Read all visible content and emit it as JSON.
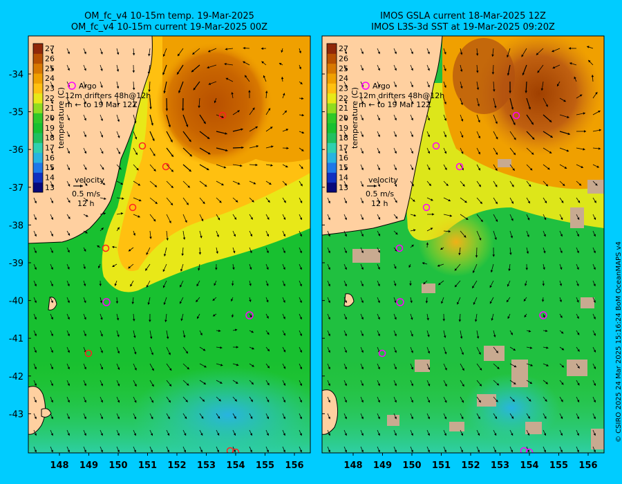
{
  "left_panel": {
    "title_line1": "OM_fc_v4  10-15m temp. 19-Mar-2025",
    "title_line2": "OM_fc_v4  10-15m current 19-Mar-2025 00Z"
  },
  "right_panel": {
    "title_line1": "IMOS GSLA current 18-Mar-2025 12Z",
    "title_line2": "IMOS L3S-3d SST at 19-Mar-2025 09:20Z"
  },
  "legend": {
    "argo_label": "Argo",
    "drifter_line1": "12m   drifters 48h@12h",
    "drifter_line2": "m  ← to 19 Mar 12Z",
    "velocity_label": "velocity",
    "velocity_scale": "0.5 m/s",
    "velocity_time": "12 h"
  },
  "colorbar": {
    "label": "temperature (C)",
    "ticks": [
      "13",
      "14",
      "15",
      "16",
      "17",
      "18",
      "19",
      "20",
      "21",
      "22",
      "23",
      "24",
      "25",
      "26",
      "27"
    ],
    "colors": [
      "#08087a",
      "#1030c0",
      "#1f78e8",
      "#28b4e0",
      "#30d0b0",
      "#20c060",
      "#18c030",
      "#30c828",
      "#90dc20",
      "#e8e818",
      "#ffc010",
      "#f0a000",
      "#d87800",
      "#b85000",
      "#902808"
    ]
  },
  "axes": {
    "lat_ticks": [
      "-34",
      "-35",
      "-36",
      "-37",
      "-38",
      "-39",
      "-40",
      "-41",
      "-42",
      "-43"
    ],
    "lon_ticks": [
      "148",
      "149",
      "150",
      "151",
      "152",
      "153",
      "154",
      "155",
      "156"
    ]
  },
  "credit": "© CSIRO 2025   24 Mar 2025 15:16:24 BoM OceanMAPS v4"
}
